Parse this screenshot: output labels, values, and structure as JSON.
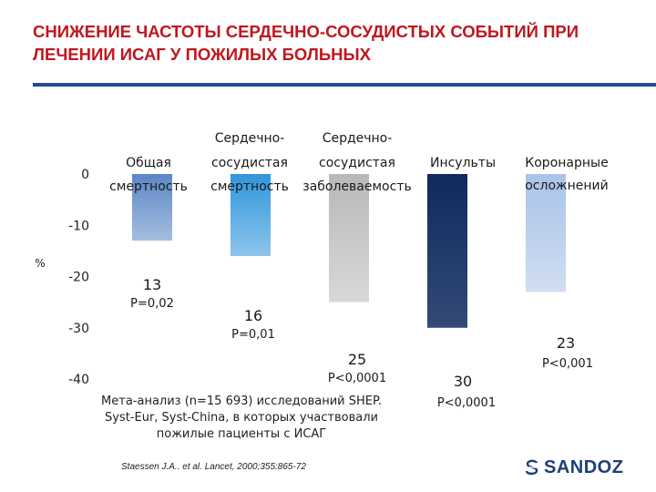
{
  "header": {
    "title": "СНИЖЕНИЕ ЧАСТОТЫ СЕРДЕЧНО-СОСУДИСТЫХ СОБЫТИЙ ПРИ ЛЕЧЕНИИ ИСАГ У ПОЖИЛЫХ БОЛЬНЫХ"
  },
  "chart_data": {
    "type": "bar",
    "title": "",
    "ylabel": "%",
    "ylim": [
      -40,
      0
    ],
    "yticks": [
      0,
      -10,
      -20,
      -30,
      -40
    ],
    "categories": [
      [
        "Общая",
        "смертность"
      ],
      [
        "Сердечно-",
        "сосудистая",
        "смертность"
      ],
      [
        "Сердечно-",
        "сосудистая",
        "заболеваемость"
      ],
      [
        "Инсульты"
      ],
      [
        "Коронарные",
        "осложнений"
      ]
    ],
    "values": [
      -13,
      -16,
      -25,
      -30,
      -23
    ],
    "value_labels": [
      "13",
      "16",
      "25",
      "30",
      "23"
    ],
    "p_values": [
      "P=0,02",
      "P=0,01",
      "P<0,0001",
      "P<0,0001",
      "P<0,001"
    ],
    "colors": [
      "#5b87c5",
      "#2f96dc",
      "#b8b8b8",
      "#0f2a5e",
      "#a9c3e8"
    ]
  },
  "note": {
    "text": "Мета-анализ (n=15 693) исследований SHEP. Syst-Eur, Syst-China, в которых участвовали пожилые пациенты с ИСАГ",
    "citation": "Staessen J.A.. et al. Lancet, 2000;355:865-72"
  },
  "logo": {
    "text": "SANDOZ",
    "icon": "sandoz-logo-icon"
  }
}
